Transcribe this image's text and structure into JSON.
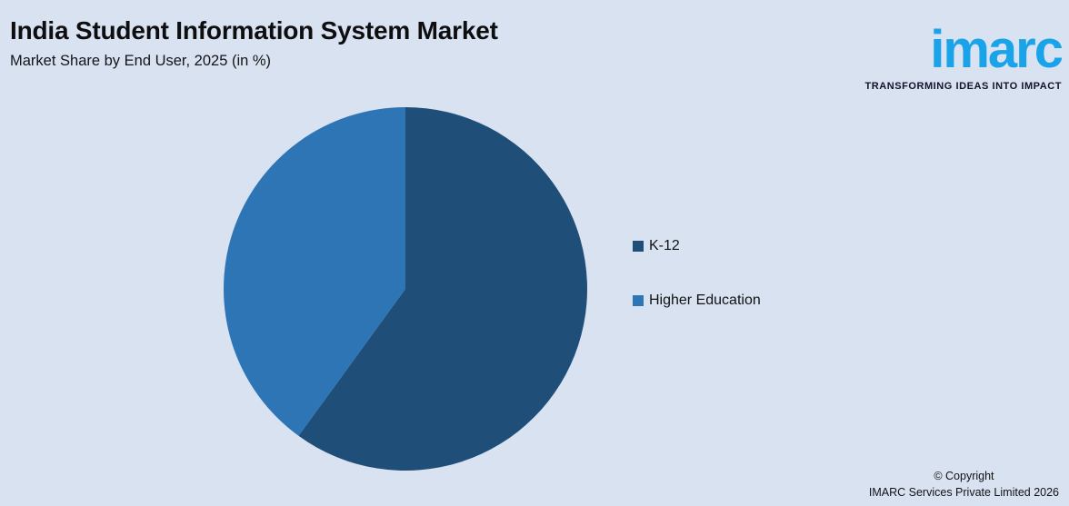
{
  "header": {
    "title": "India Student Information System Market",
    "subtitle": "Market Share by End User, 2025 (in %)"
  },
  "logo": {
    "text": "imarc",
    "tagline": "TRANSFORMING IDEAS INTO IMPACT",
    "brand_color": "#19A3E8"
  },
  "chart_data": {
    "type": "pie",
    "title": "India Student Information System Market",
    "subtitle": "Market Share by End User, 2025 (in %)",
    "categories": [
      "K-12",
      "Higher Education"
    ],
    "values": [
      60,
      40
    ],
    "unit": "%",
    "colors": [
      "#1F4E79",
      "#2E75B6"
    ],
    "start_angle_deg": 0,
    "direction": "clockwise",
    "legend_position": "right",
    "data_labels": "none"
  },
  "footer": {
    "copyright_line1": "© Copyright",
    "copyright_line2": "IMARC Services Private Limited 2026"
  },
  "theme": {
    "background": "#D9E2F1",
    "text_color": "#121214"
  }
}
